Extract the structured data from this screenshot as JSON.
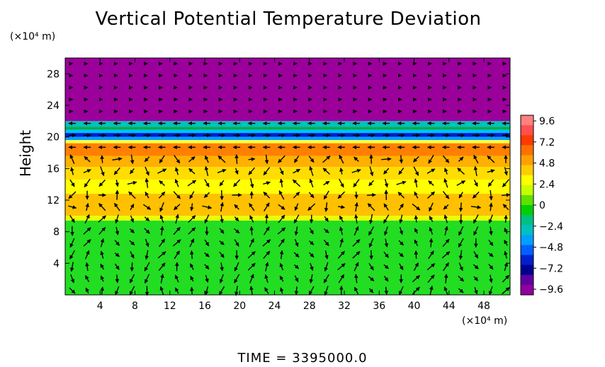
{
  "chart_data": {
    "type": "heatmap",
    "title": "Vertical Potential Temperature Deviation",
    "ylabel": "Height",
    "x_unit": "(×10⁴ m)",
    "y_unit": "(×10⁴ m)",
    "xlim": [
      0,
      51
    ],
    "ylim": [
      0,
      30
    ],
    "x_ticks": [
      4,
      8,
      12,
      16,
      20,
      24,
      28,
      32,
      36,
      40,
      44,
      48
    ],
    "y_ticks": [
      4,
      8,
      12,
      16,
      20,
      24,
      28
    ],
    "colorbar": {
      "range": [
        -9.6,
        9.6
      ],
      "tick_labels": [
        "9.6",
        "7.2",
        "4.8",
        "2.4",
        "0",
        "−2.4",
        "−4.8",
        "−7.2",
        "−9.6"
      ],
      "colors": [
        "#ff8080",
        "#ff5050",
        "#ff3a00",
        "#ff7000",
        "#ffa000",
        "#ffcc00",
        "#ffff00",
        "#c8ff00",
        "#60e000",
        "#00d000",
        "#00c080",
        "#00c0c0",
        "#00a0ff",
        "#0060ff",
        "#0020d0",
        "#000090",
        "#6000a0",
        "#9000a0"
      ]
    },
    "bands": [
      {
        "y0": 22,
        "y1": 30,
        "color": "#9b009b"
      },
      {
        "y0": 21.3,
        "y1": 22,
        "color": "#00c0c0"
      },
      {
        "y0": 20.9,
        "y1": 21.3,
        "color": "#00b050"
      },
      {
        "y0": 20.5,
        "y1": 20.9,
        "color": "#00c0ff"
      },
      {
        "y0": 20.0,
        "y1": 20.5,
        "color": "#0020d0"
      },
      {
        "y0": 19.6,
        "y1": 20.0,
        "color": "#00a0ff"
      },
      {
        "y0": 19.2,
        "y1": 19.6,
        "color": "#ffff40"
      },
      {
        "y0": 17.6,
        "y1": 19.2,
        "color": "#ff8000"
      },
      {
        "y0": 16.2,
        "y1": 17.6,
        "color": "#ffb000"
      },
      {
        "y0": 14.6,
        "y1": 16.2,
        "color": "#ffdd00"
      },
      {
        "y0": 12.8,
        "y1": 14.6,
        "color": "#ffff00"
      },
      {
        "y0": 10.0,
        "y1": 12.8,
        "color": "#ffc000"
      },
      {
        "y0": 9.4,
        "y1": 10.0,
        "color": "#e8ff00"
      },
      {
        "y0": 0,
        "y1": 9.4,
        "color": "#22dd22"
      }
    ],
    "time_label": "TIME",
    "time_value": "3395000.0"
  }
}
